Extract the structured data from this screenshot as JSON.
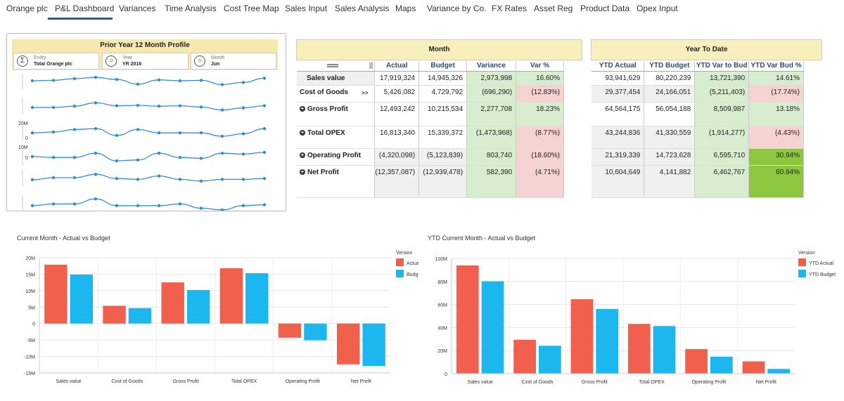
{
  "nav": {
    "tabs": [
      {
        "label": "Orange plc"
      },
      {
        "label": "P&L Dashboard",
        "active": true
      },
      {
        "label": "Variances"
      },
      {
        "label": "Time Analysis"
      },
      {
        "label": "Cost Tree Map"
      },
      {
        "label": "Sales Input"
      },
      {
        "label": "Sales Analysis"
      },
      {
        "label": "Maps"
      },
      {
        "label": "Variance by Co."
      },
      {
        "label": "FX Rates"
      },
      {
        "label": "Asset Reg"
      },
      {
        "label": "Product Data"
      },
      {
        "label": "Opex Input"
      }
    ]
  },
  "profile": {
    "title": "Prior Year 12 Month Profile",
    "filters": [
      {
        "label": "Entity",
        "value": "Total Orange plc",
        "icon": "sigma-icon"
      },
      {
        "label": "Year",
        "value": "YR 2016",
        "icon": "circle-icon"
      },
      {
        "label": "Month",
        "value": "Jun",
        "icon": "circle-icon"
      }
    ],
    "axis_labels": [
      "20M",
      "0",
      "10M",
      "0"
    ],
    "sparklines": [
      [
        2.0,
        2.1,
        2.5,
        2.8,
        2.3,
        1.2,
        2.2,
        2.0,
        2.1,
        1.1,
        1.6,
        2.6
      ],
      [
        1.5,
        1.5,
        1.8,
        2.6,
        1.9,
        2.0,
        1.8,
        1.9,
        1.6,
        0.9,
        1.4,
        1.9
      ],
      [
        1.8,
        2.0,
        2.6,
        2.8,
        1.2,
        2.6,
        1.8,
        1.8,
        1.8,
        1.0,
        1.6,
        2.8
      ],
      [
        2.0,
        1.8,
        1.8,
        2.8,
        1.0,
        1.2,
        2.8,
        1.8,
        1.6,
        2.8,
        2.6,
        3.0
      ],
      [
        1.5,
        2.0,
        2.0,
        2.8,
        1.8,
        1.6,
        2.4,
        1.6,
        1.2,
        1.6,
        1.6,
        1.8
      ],
      [
        1.2,
        1.6,
        1.6,
        2.8,
        1.2,
        1.2,
        1.2,
        1.6,
        0.6,
        0.2,
        1.2,
        1.4
      ]
    ]
  },
  "month_table": {
    "header": "Month",
    "columns": [
      "Actual",
      "Budget",
      "Variance",
      "Var %"
    ],
    "rows": [
      {
        "label": "Sales value",
        "actual": "17,919,324",
        "budget": "14,945,326",
        "variance": "2,973,998",
        "var_pct": "16.60%",
        "neg_var": false,
        "expand": false
      },
      {
        "label": "Cost of Goods",
        "actual": "5,426,082",
        "budget": "4,729,792",
        "variance": "(696,290)",
        "var_pct": "(12.83%)",
        "neg_var": true,
        "expand": false,
        "marker": ">>"
      },
      {
        "label": "Gross Profit",
        "actual": "12,493,242",
        "budget": "10,215,534",
        "variance": "2,277,708",
        "var_pct": "18.23%",
        "neg_var": false,
        "expand": true
      },
      {
        "label": "Total OPEX",
        "actual": "16,813,340",
        "budget": "15,339,372",
        "variance": "(1,473,968)",
        "var_pct": "(8.77%)",
        "neg_var": true,
        "expand": true
      },
      {
        "label": "Operating Profit",
        "actual": "(4,320,098)",
        "budget": "(5,123,839)",
        "variance": "803,740",
        "var_pct": "(18.60%)",
        "neg_var": false,
        "expand": true
      },
      {
        "label": "Net Profit",
        "actual": "(12,357,087)",
        "budget": "(12,939,478)",
        "variance": "582,390",
        "var_pct": "(4.71%)",
        "neg_var": false,
        "expand": true
      }
    ]
  },
  "ytd_table": {
    "header": "Year To Date",
    "columns": [
      "YTD Actual",
      "YTD Budget",
      "YTD Var to Bud",
      "YTD Var Bud %"
    ],
    "rows": [
      {
        "actual": "93,941,629",
        "budget": "80,220,239",
        "variance": "13,721,390",
        "var_pct": "14.61%",
        "neg_var": false,
        "pct_style": "good"
      },
      {
        "actual": "29,377,454",
        "budget": "24,166,051",
        "variance": "(5,211,403)",
        "var_pct": "(17.74%)",
        "neg_var": true,
        "pct_style": "bad"
      },
      {
        "actual": "64,564,175",
        "budget": "56,054,188",
        "variance": "8,509,987",
        "var_pct": "13.18%",
        "neg_var": false,
        "pct_style": "good"
      },
      {
        "actual": "43,244,836",
        "budget": "41,330,559",
        "variance": "(1,914,277)",
        "var_pct": "(4.43%)",
        "neg_var": true,
        "pct_style": "bad"
      },
      {
        "actual": "21,319,339",
        "budget": "14,723,628",
        "variance": "6,595,710",
        "var_pct": "30.94%",
        "neg_var": false,
        "pct_style": "bright"
      },
      {
        "actual": "10,604,649",
        "budget": "4,141,882",
        "variance": "6,462,767",
        "var_pct": "60.94%",
        "neg_var": false,
        "pct_style": "bright"
      }
    ]
  },
  "colors": {
    "actual": "#f0604d",
    "budget": "#1db7ef"
  },
  "chart_data": [
    {
      "type": "bar",
      "title": "Current Month - Actual vs Budget",
      "legend_title": "Version",
      "legend_position": "top-right",
      "categories": [
        "Sales value",
        "Cost of Goods",
        "Gross Profit",
        "Total OPEX",
        "Operating Profit",
        "Net Profit"
      ],
      "series": [
        {
          "name": "Actual",
          "values": [
            17.9,
            5.4,
            12.5,
            16.8,
            -4.3,
            -12.4
          ]
        },
        {
          "name": "Budget",
          "values": [
            14.9,
            4.7,
            10.2,
            15.3,
            -5.1,
            -12.9
          ]
        }
      ],
      "yticks": [
        "20M",
        "15M",
        "10M",
        "5M",
        "0",
        "-5M",
        "-10M",
        "-15M"
      ],
      "ylim": [
        -15,
        20
      ]
    },
    {
      "type": "bar",
      "title": "YTD Current Month - Actual vs Budget",
      "legend_title": "Version",
      "legend_position": "top-right",
      "categories": [
        "Sales value",
        "Cost of Goods",
        "Gross Profit",
        "Total OPEX",
        "Operating Profit",
        "Net Profit"
      ],
      "series": [
        {
          "name": "YTD Actual",
          "values": [
            93.9,
            29.4,
            64.6,
            43.2,
            21.3,
            10.6
          ]
        },
        {
          "name": "YTD Budget",
          "values": [
            80.2,
            24.2,
            56.1,
            41.3,
            14.7,
            4.1
          ]
        }
      ],
      "yticks": [
        "100M",
        "80M",
        "60M",
        "40M",
        "20M",
        "0"
      ],
      "ylim": [
        0,
        100
      ]
    }
  ]
}
